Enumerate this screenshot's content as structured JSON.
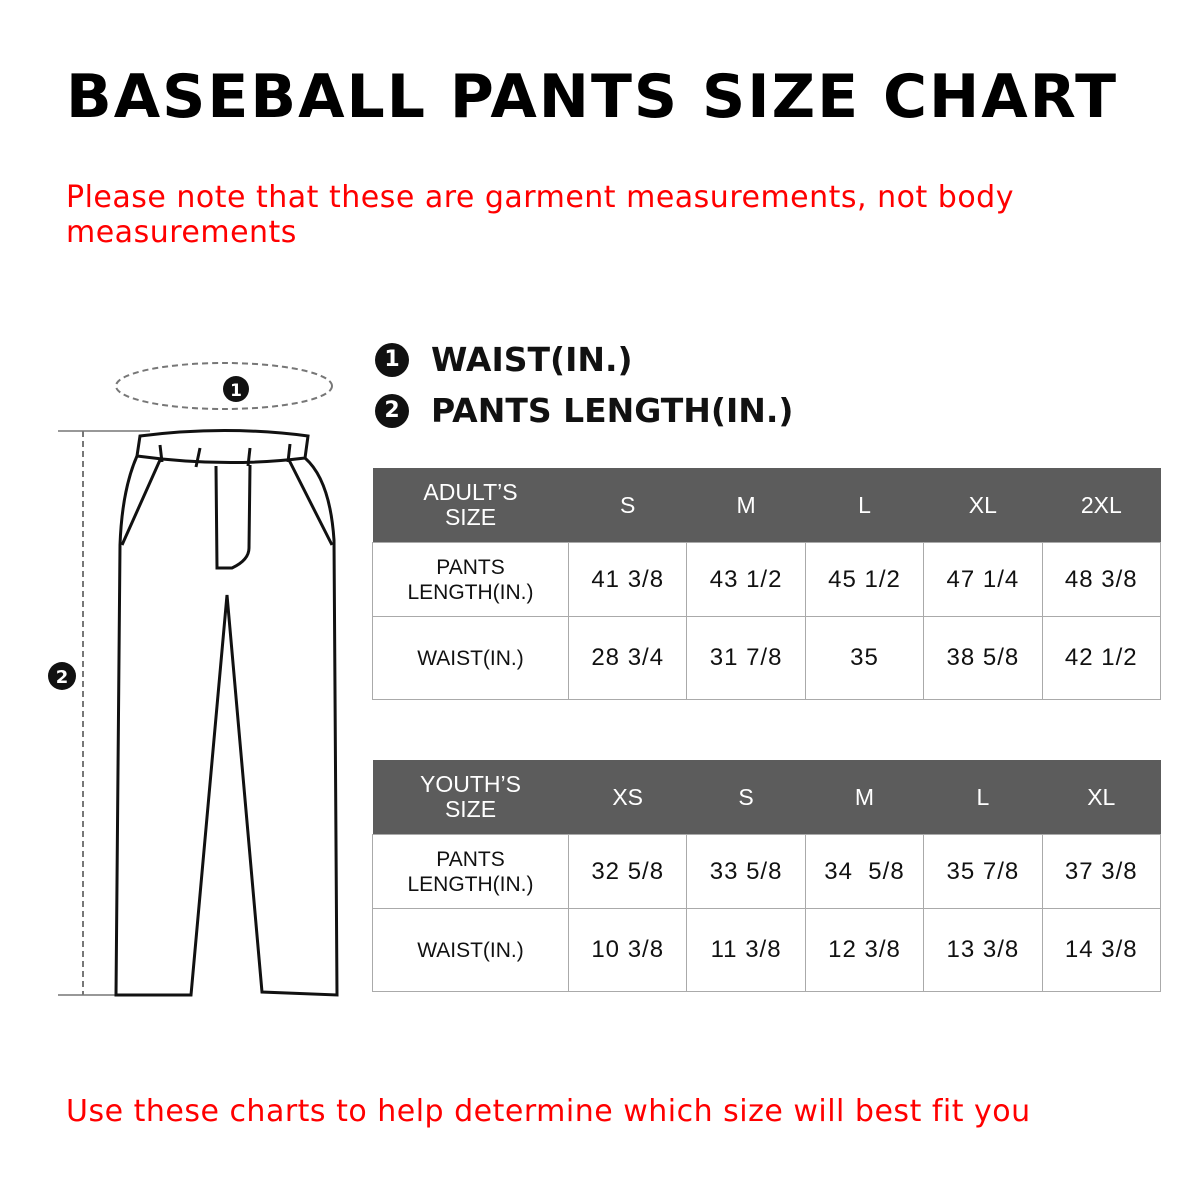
{
  "title": "BASEBALL PANTS SIZE CHART",
  "top_note": "Please note that these are garment measurements, not body measurements",
  "bottom_note": "Use these charts to help determine which size will best fit you",
  "legend": [
    {
      "num": "1",
      "label": "WAIST(IN.)"
    },
    {
      "num": "2",
      "label": "PANTS LENGTH(IN.)"
    }
  ],
  "adult": {
    "header": "ADULT’S SIZE",
    "sizes": [
      "S",
      "M",
      "L",
      "XL",
      "2XL"
    ],
    "rows": [
      {
        "label": "PANTS LENGTH(IN.)",
        "values": [
          "41 3/8",
          "43 1/2",
          "45 1/2",
          "47 1/4",
          "48 3/8"
        ]
      },
      {
        "label": "WAIST(IN.)",
        "values": [
          "28 3/4",
          "31 7/8",
          "35",
          "38 5/8",
          "42 1/2"
        ]
      }
    ]
  },
  "youth": {
    "header": "YOUTH’S SIZE",
    "sizes": [
      "XS",
      "S",
      "M",
      "L",
      "XL"
    ],
    "rows": [
      {
        "label": "PANTS LENGTH(IN.)",
        "values": [
          "32 5/8",
          "33 5/8",
          "34  5/8",
          "35 7/8",
          "37 3/8"
        ]
      },
      {
        "label": "WAIST(IN.)",
        "values": [
          "10 3/8",
          "11 3/8",
          "12 3/8",
          "13 3/8",
          "14 3/8"
        ]
      }
    ]
  },
  "colors": {
    "note": "#ff0000",
    "header_bg": "#5c5c5c"
  }
}
